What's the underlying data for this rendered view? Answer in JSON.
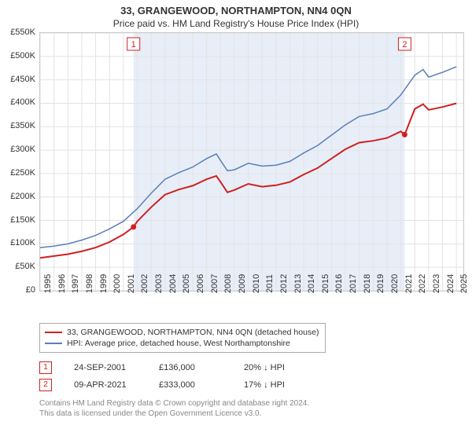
{
  "title": "33, GRANGEWOOD, NORTHAMPTON, NN4 0QN",
  "subtitle": "Price paid vs. HM Land Registry's House Price Index (HPI)",
  "chart": {
    "type": "line",
    "background_color": "#ffffff",
    "grid_color": "#e3e3e3",
    "highlight_band_color": "#e8eef8",
    "xlim": [
      1995,
      2025.5
    ],
    "ylim": [
      0,
      550000
    ],
    "ytick_step": 50000,
    "yticks_labels": [
      "£0",
      "£50K",
      "£100K",
      "£150K",
      "£200K",
      "£250K",
      "£300K",
      "£350K",
      "£400K",
      "£450K",
      "£500K",
      "£550K"
    ],
    "xticks": [
      1995,
      1996,
      1997,
      1998,
      1999,
      2000,
      2001,
      2002,
      2003,
      2004,
      2005,
      2006,
      2007,
      2008,
      2009,
      2010,
      2011,
      2012,
      2013,
      2014,
      2015,
      2016,
      2017,
      2018,
      2019,
      2020,
      2021,
      2022,
      2023,
      2024,
      2025
    ],
    "highlight_band": [
      2001.73,
      2021.27
    ],
    "series": [
      {
        "name": "property",
        "label": "33, GRANGEWOOD, NORTHAMPTON, NN4 0QN (detached house)",
        "color": "#d02020",
        "line_width": 2,
        "points": [
          [
            1995,
            70000
          ],
          [
            1996,
            74000
          ],
          [
            1997,
            78000
          ],
          [
            1998,
            84000
          ],
          [
            1999,
            92000
          ],
          [
            2000,
            104000
          ],
          [
            2001,
            120000
          ],
          [
            2001.73,
            136000
          ],
          [
            2002,
            148000
          ],
          [
            2003,
            178000
          ],
          [
            2004,
            205000
          ],
          [
            2005,
            216000
          ],
          [
            2006,
            224000
          ],
          [
            2007,
            238000
          ],
          [
            2007.7,
            245000
          ],
          [
            2008,
            232000
          ],
          [
            2008.5,
            210000
          ],
          [
            2009,
            215000
          ],
          [
            2010,
            228000
          ],
          [
            2011,
            222000
          ],
          [
            2012,
            225000
          ],
          [
            2013,
            232000
          ],
          [
            2014,
            248000
          ],
          [
            2015,
            262000
          ],
          [
            2016,
            282000
          ],
          [
            2017,
            302000
          ],
          [
            2018,
            316000
          ],
          [
            2019,
            320000
          ],
          [
            2020,
            326000
          ],
          [
            2021,
            340000
          ],
          [
            2021.27,
            333000
          ],
          [
            2022,
            388000
          ],
          [
            2022.6,
            398000
          ],
          [
            2023,
            386000
          ],
          [
            2024,
            392000
          ],
          [
            2025,
            400000
          ]
        ]
      },
      {
        "name": "hpi",
        "label": "HPI: Average price, detached house, West Northamptonshire",
        "color": "#5b7fb8",
        "line_width": 1.5,
        "points": [
          [
            1995,
            92000
          ],
          [
            1996,
            95000
          ],
          [
            1997,
            100000
          ],
          [
            1998,
            108000
          ],
          [
            1999,
            118000
          ],
          [
            2000,
            132000
          ],
          [
            2001,
            148000
          ],
          [
            2002,
            175000
          ],
          [
            2003,
            208000
          ],
          [
            2004,
            238000
          ],
          [
            2005,
            252000
          ],
          [
            2006,
            264000
          ],
          [
            2007,
            282000
          ],
          [
            2007.7,
            292000
          ],
          [
            2008,
            278000
          ],
          [
            2008.5,
            256000
          ],
          [
            2009,
            258000
          ],
          [
            2010,
            272000
          ],
          [
            2011,
            266000
          ],
          [
            2012,
            268000
          ],
          [
            2013,
            276000
          ],
          [
            2014,
            294000
          ],
          [
            2015,
            310000
          ],
          [
            2016,
            332000
          ],
          [
            2017,
            354000
          ],
          [
            2018,
            372000
          ],
          [
            2019,
            378000
          ],
          [
            2020,
            388000
          ],
          [
            2021,
            418000
          ],
          [
            2022,
            460000
          ],
          [
            2022.6,
            472000
          ],
          [
            2023,
            456000
          ],
          [
            2024,
            466000
          ],
          [
            2025,
            478000
          ]
        ]
      }
    ],
    "event_markers": [
      {
        "n": "1",
        "x": 2001.73,
        "y": 136000,
        "date": "24-SEP-2001",
        "price": "£136,000",
        "delta": "20% ↓ HPI"
      },
      {
        "n": "2",
        "x": 2021.27,
        "y": 333000,
        "date": "09-APR-2021",
        "price": "£333,000",
        "delta": "17% ↓ HPI"
      }
    ]
  },
  "legend": {
    "row1": "33, GRANGEWOOD, NORTHAMPTON, NN4 0QN (detached house)",
    "row2": "HPI: Average price, detached house, West Northamptonshire"
  },
  "footnote1": "Contains HM Land Registry data © Crown copyright and database right 2024.",
  "footnote2": "This data is licensed under the Open Government Licence v3.0."
}
